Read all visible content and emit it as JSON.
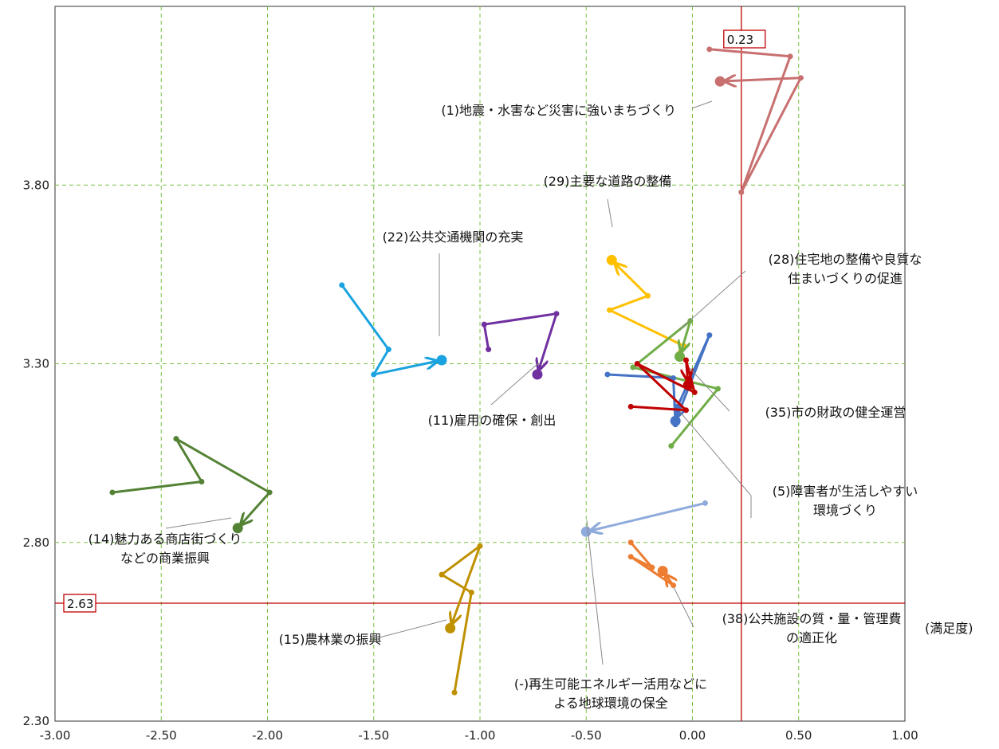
{
  "chart_data": {
    "type": "scatter",
    "title": "",
    "xlabel": "(満足度)",
    "ylabel": "",
    "xlim": [
      -3.0,
      1.0
    ],
    "ylim": [
      2.3,
      4.3
    ],
    "x_ticks": [
      "-3.00",
      "-2.50",
      "-2.00",
      "-1.50",
      "-1.00",
      "-0.50",
      "0.00",
      "0.50",
      "1.00"
    ],
    "y_ticks": [
      "2.30",
      "2.80",
      "3.30",
      "3.80"
    ],
    "grid": true,
    "reference_lines": {
      "x": {
        "value": 0.23,
        "label": "0.23"
      },
      "y": {
        "value": 2.63,
        "label": "2.63"
      }
    },
    "series": [
      {
        "name": "(1)地震・水害など災害に強いまちづくり",
        "lines": [
          "(1)地震・水害など災害に強いまちづくり"
        ],
        "color": "#c87070",
        "points": [
          [
            0.08,
            4.18
          ],
          [
            0.46,
            4.16
          ],
          [
            0.23,
            3.78
          ],
          [
            0.51,
            4.1
          ],
          [
            0.13,
            4.09
          ]
        ]
      },
      {
        "name": "(29)主要な道路の整備",
        "lines": [
          "(29)主要な道路の整備"
        ],
        "color": "#ffc000",
        "points": [
          [
            -0.06,
            3.33
          ],
          [
            -0.04,
            3.35
          ],
          [
            -0.39,
            3.45
          ],
          [
            -0.21,
            3.49
          ],
          [
            -0.38,
            3.59
          ]
        ]
      },
      {
        "name": "(22)公共交通機関の充実",
        "lines": [
          "(22)公共交通機関の充実"
        ],
        "color": "#1aa3e0",
        "points": [
          [
            -1.65,
            3.52
          ],
          [
            -1.43,
            3.34
          ],
          [
            -1.5,
            3.27
          ],
          [
            -1.18,
            3.31
          ]
        ]
      },
      {
        "name": "(11)雇用の確保・創出",
        "lines": [
          "(11)雇用の確保・創出"
        ],
        "color": "#7030a0",
        "points": [
          [
            -0.96,
            3.34
          ],
          [
            -0.98,
            3.41
          ],
          [
            -0.64,
            3.44
          ],
          [
            -0.73,
            3.27
          ]
        ]
      },
      {
        "name": "(28)住宅地の整備や良質な住まいづくりの促進",
        "lines": [
          "(28)住宅地の整備や良質な",
          "住まいづくりの促進"
        ],
        "color": "#70ad47",
        "points": [
          [
            -0.1,
            3.07
          ],
          [
            0.12,
            3.23
          ],
          [
            -0.28,
            3.29
          ],
          [
            -0.01,
            3.42
          ],
          [
            -0.06,
            3.32
          ]
        ]
      },
      {
        "name": "(5)障害者が生活しやすい環境づくり",
        "lines": [
          "(5)障害者が生活しやすい",
          "環境づくり"
        ],
        "color": "#4472c4",
        "points": [
          [
            -0.4,
            3.27
          ],
          [
            -0.09,
            3.26
          ],
          [
            -0.08,
            3.13
          ],
          [
            -0.07,
            3.18
          ],
          [
            0.08,
            3.38
          ],
          [
            -0.08,
            3.14
          ]
        ]
      },
      {
        "name": "(35)市の財政の健全運営",
        "lines": [
          "(35)市の財政の健全運営"
        ],
        "color": "#c00000",
        "points": [
          [
            -0.29,
            3.18
          ],
          [
            -0.03,
            3.17
          ],
          [
            -0.26,
            3.3
          ],
          [
            0.01,
            3.22
          ],
          [
            -0.03,
            3.31
          ],
          [
            -0.02,
            3.24
          ]
        ]
      },
      {
        "name": "(14)魅力ある商店街づくりなどの商業振興",
        "lines": [
          "(14)魅力ある商店街づくり",
          "などの商業振興"
        ],
        "color": "#548235",
        "points": [
          [
            -2.73,
            2.94
          ],
          [
            -2.31,
            2.97
          ],
          [
            -2.43,
            3.09
          ],
          [
            -1.99,
            2.94
          ],
          [
            -2.14,
            2.84
          ]
        ]
      },
      {
        "name": "(-)再生可能エネルギー活用などによる地球環境の保全",
        "lines": [
          "(-)再生可能エネルギー活用などに",
          "よる地球環境の保全"
        ],
        "color": "#8faadc",
        "points": [
          [
            0.06,
            2.91
          ],
          [
            -0.5,
            2.83
          ]
        ]
      },
      {
        "name": "(38)公共施設の質・量・管理費の適正化",
        "lines": [
          "(38)公共施設の質・量・管理費",
          "の適正化"
        ],
        "color": "#ed7d31",
        "points": [
          [
            -0.29,
            2.8
          ],
          [
            -0.19,
            2.73
          ],
          [
            -0.29,
            2.76
          ],
          [
            -0.09,
            2.68
          ],
          [
            -0.14,
            2.72
          ]
        ]
      },
      {
        "name": "(15)農林業の振興",
        "lines": [
          "(15)農林業の振興"
        ],
        "color": "#bf9000",
        "points": [
          [
            -1.12,
            2.38
          ],
          [
            -1.04,
            2.66
          ],
          [
            -1.18,
            2.71
          ],
          [
            -1.0,
            2.79
          ],
          [
            -1.14,
            2.56
          ]
        ]
      }
    ]
  }
}
